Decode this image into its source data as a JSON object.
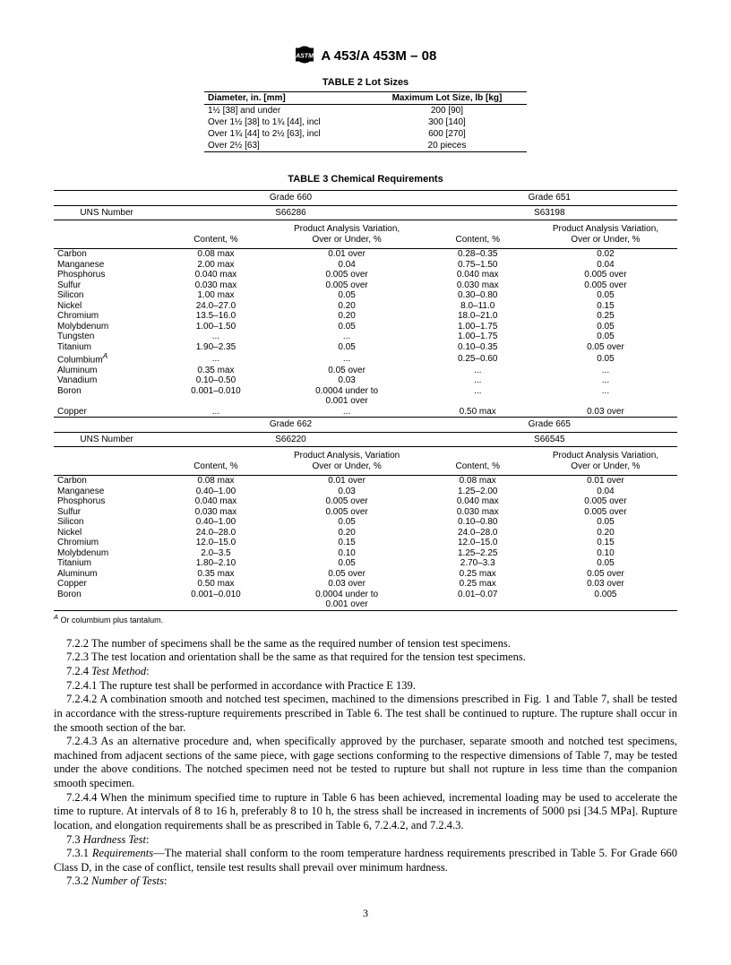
{
  "header": {
    "designation": "A 453/A 453M – 08",
    "logo_svg_color": "#000"
  },
  "table2": {
    "title": "TABLE 2   Lot Sizes",
    "headers": [
      "Diameter, in. [mm]",
      "Maximum Lot Size, lb [kg]"
    ],
    "rows": [
      [
        "1½ [38] and under",
        "200 [90]"
      ],
      [
        "Over 1½ [38] to 1¾ [44], incl",
        "300 [140]"
      ],
      [
        "Over 1¾ [44] to 2½ [63], incl",
        "600 [270]"
      ],
      [
        "Over 2½ [63]",
        "20 pieces"
      ]
    ]
  },
  "table3": {
    "title": "TABLE 3   Chemical Requirements",
    "grade_label_a": "Grade 660",
    "grade_label_b": "Grade 651",
    "grade_label_c": "Grade 662",
    "grade_label_d": "Grade 665",
    "uns_label": "UNS Number",
    "uns_a": "S66286",
    "uns_b": "S63198",
    "uns_c": "S66220",
    "uns_d": "S66545",
    "col1": "Content, %",
    "col2_line1": "Product Analysis Variation,",
    "col2_line2": "Over or Under, %",
    "col2b_line1": "Product Analysis, Variation",
    "elements_block1": [
      {
        "el": "Carbon",
        "a1": "0.08 max",
        "a2": "0.01 over",
        "b1": "0.28–0.35",
        "b2": "0.02"
      },
      {
        "el": "Manganese",
        "a1": "2.00 max",
        "a2": "0.04",
        "b1": "0.75–1.50",
        "b2": "0.04"
      },
      {
        "el": "Phosphorus",
        "a1": "0.040 max",
        "a2": "0.005 over",
        "b1": "0.040 max",
        "b2": "0.005 over"
      },
      {
        "el": "Sulfur",
        "a1": "0.030 max",
        "a2": "0.005 over",
        "b1": "0.030 max",
        "b2": "0.005 over"
      },
      {
        "el": "Silicon",
        "a1": "1.00 max",
        "a2": "0.05",
        "b1": "0.30–0.80",
        "b2": "0.05"
      },
      {
        "el": "Nickel",
        "a1": "24.0–27.0",
        "a2": "0.20",
        "b1": "8.0–11.0",
        "b2": "0.15"
      },
      {
        "el": "Chromium",
        "a1": "13.5–16.0",
        "a2": "0.20",
        "b1": "18.0–21.0",
        "b2": "0.25"
      },
      {
        "el": "Molybdenum",
        "a1": "1.00–1.50",
        "a2": "0.05",
        "b1": "1.00–1.75",
        "b2": "0.05"
      },
      {
        "el": "Tungsten",
        "a1": "...",
        "a2": "...",
        "b1": "1.00–1.75",
        "b2": "0.05"
      },
      {
        "el": "Titanium",
        "a1": "1.90–2.35",
        "a2": "0.05",
        "b1": "0.10–0.35",
        "b2": "0.05 over"
      },
      {
        "el": "Columbium",
        "sup": "A",
        "a1": "...",
        "a2": "...",
        "b1": "0.25–0.60",
        "b2": "0.05"
      },
      {
        "el": "Aluminum",
        "a1": "0.35 max",
        "a2": "0.05 over",
        "b1": "...",
        "b2": "..."
      },
      {
        "el": "Vanadium",
        "a1": "0.10–0.50",
        "a2": "0.03",
        "b1": "...",
        "b2": "..."
      },
      {
        "el": "Boron",
        "a1": "0.001–0.010",
        "a2": "0.0004 under to",
        "a2b": "0.001 over",
        "b1": "...",
        "b2": "..."
      },
      {
        "el": "Copper",
        "a1": "...",
        "a2": "...",
        "b1": "0.50 max",
        "b2": "0.03 over"
      }
    ],
    "elements_block2": [
      {
        "el": "Carbon",
        "a1": "0.08 max",
        "a2": "0.01 over",
        "b1": "0.08 max",
        "b2": "0.01 over"
      },
      {
        "el": "Manganese",
        "a1": "0.40–1.00",
        "a2": "0.03",
        "b1": "1.25–2.00",
        "b2": "0.04"
      },
      {
        "el": "Phosphorus",
        "a1": "0.040 max",
        "a2": "0.005 over",
        "b1": "0.040 max",
        "b2": "0.005 over"
      },
      {
        "el": "Sulfur",
        "a1": "0.030 max",
        "a2": "0.005 over",
        "b1": "0.030 max",
        "b2": "0.005 over"
      },
      {
        "el": "Silicon",
        "a1": "0.40–1.00",
        "a2": "0.05",
        "b1": "0.10–0.80",
        "b2": "0.05"
      },
      {
        "el": "Nickel",
        "a1": "24.0–28.0",
        "a2": "0.20",
        "b1": "24.0–28.0",
        "b2": "0.20"
      },
      {
        "el": "Chromium",
        "a1": "12.0–15.0",
        "a2": "0.15",
        "b1": "12.0–15.0",
        "b2": "0.15"
      },
      {
        "el": "Molybdenum",
        "a1": "2.0–3.5",
        "a2": "0.10",
        "b1": "1.25–2.25",
        "b2": "0.10"
      },
      {
        "el": "Titanium",
        "a1": "1.80–2.10",
        "a2": "0.05",
        "b1": "2.70–3.3",
        "b2": "0.05"
      },
      {
        "el": "Aluminum",
        "a1": "0.35 max",
        "a2": "0.05 over",
        "b1": "0.25 max",
        "b2": "0.05 over"
      },
      {
        "el": "Copper",
        "a1": "0.50 max",
        "a2": "0.03 over",
        "b1": "0.25 max",
        "b2": "0.03 over"
      },
      {
        "el": "Boron",
        "a1": "0.001–0.010",
        "a2": "0.0004 under to",
        "a2b": "0.001 over",
        "b1": "0.01–0.07",
        "b2": "0.005"
      }
    ],
    "footnote_sup": "A",
    "footnote": "Or columbium plus tantalum."
  },
  "paragraphs": {
    "p1": "7.2.2 The number of specimens shall be the same as the required number of tension test specimens.",
    "p2": "7.2.3 The test location and orientation shall be the same as that required for the tension test specimens.",
    "p3a": "7.2.4 ",
    "p3b": "Test Method",
    "p3c": ":",
    "p4": "7.2.4.1 The rupture test shall be performed in accordance with Practice E 139.",
    "p5": "7.2.4.2 A combination smooth and notched test specimen, machined to the dimensions prescribed in Fig. 1 and Table 7, shall be tested in accordance with the stress-rupture requirements prescribed in Table 6. The test shall be continued to rupture. The rupture shall occur in the smooth section of the bar.",
    "p6": "7.2.4.3 As an alternative procedure and, when specifically approved by the purchaser, separate smooth and notched test specimens, machined from adjacent sections of the same piece, with gage sections conforming to the respective dimensions of Table 7, may be tested under the above conditions. The notched specimen need not be tested to rupture but shall not rupture in less time than the companion smooth specimen.",
    "p7": "7.2.4.4 When the minimum specified time to rupture in Table 6 has been achieved, incremental loading may be used to accelerate the time to rupture. At intervals of 8 to 16 h, preferably 8 to 10 h, the stress shall be increased in increments of 5000 psi [34.5 MPa]. Rupture location, and elongation requirements shall be as prescribed in Table 6, 7.2.4.2, and 7.2.4.3.",
    "p8a": "7.3 ",
    "p8b": "Hardness Test",
    "p8c": ":",
    "p9a": "7.3.1 ",
    "p9b": "Requirements",
    "p9c": "—The material shall conform to the room temperature hardness requirements prescribed in Table 5. For Grade 660 Class D, in the case of conflict, tensile test results shall prevail over minimum hardness.",
    "p10a": "7.3.2 ",
    "p10b": "Number of Tests",
    "p10c": ":"
  },
  "pagenum": "3"
}
